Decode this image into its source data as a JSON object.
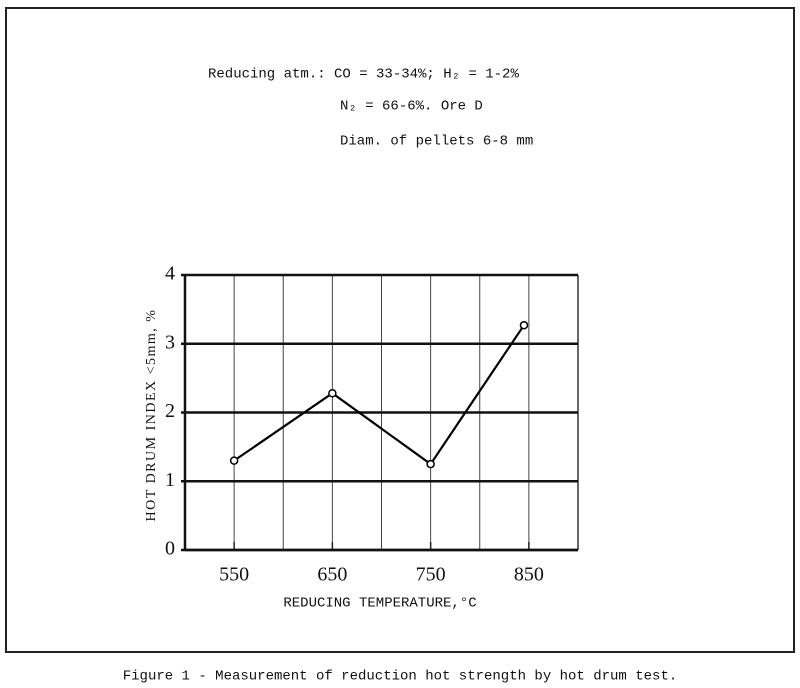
{
  "chart_data": {
    "type": "line",
    "annotations": [
      "Reducing atm.:  CO = 33-34%; H₂ = 1-2%",
      "N₂ = 66-6%.      Ore D",
      "Diam. of pellets 6-8 mm"
    ],
    "x_label": "REDUCING TEMPERATURE,°C",
    "y_label": "HOT DRUM INDEX <5mm, %",
    "caption": "Figure 1 - Measurement of reduction hot strength by hot drum test.",
    "x": [
      550,
      650,
      750,
      845
    ],
    "values": [
      1.3,
      2.28,
      1.25,
      3.27
    ],
    "color": "#000000",
    "xlim": [
      500,
      900
    ],
    "xticks": [
      550,
      650,
      750,
      850
    ],
    "xminorticks": [
      600,
      700,
      800
    ],
    "ylim": [
      0,
      4
    ],
    "yticks": [
      0,
      1,
      2,
      3,
      4
    ],
    "grid": true
  }
}
